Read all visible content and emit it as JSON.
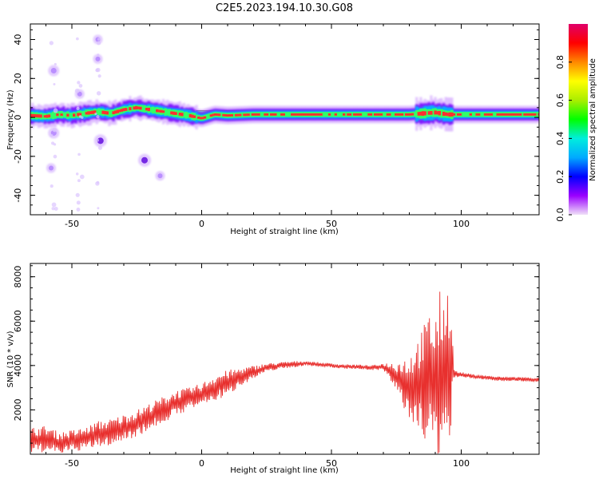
{
  "figure_title": "C2E5.2023.194.10.30.G08",
  "colors": {
    "snr_line": "#e8302e",
    "frame": "#000000",
    "track_core": "#c00000"
  },
  "colorbar": {
    "label": "Normalized spectral amplitude",
    "ticks": [
      0.0,
      0.2,
      0.4,
      0.6,
      0.8
    ],
    "tick_labels": [
      "0.0",
      "0.2",
      "0.4",
      "0.6",
      "0.8"
    ],
    "range": [
      0,
      1
    ],
    "stops": [
      "#f0e0f8",
      "#9a00ff",
      "#0000ff",
      "#00aaff",
      "#00eedd",
      "#00ff00",
      "#aaee00",
      "#ffff00",
      "#ff8800",
      "#ff0000",
      "#e0006a"
    ]
  },
  "chart_data": [
    {
      "type": "heatmap",
      "title": "",
      "xlabel": "Height of straight line (km)",
      "ylabel": "Frequency (Hz)",
      "xlim": [
        -66,
        130
      ],
      "ylim": [
        -50,
        48
      ],
      "xticks": [
        -50,
        0,
        50,
        100
      ],
      "xtick_labels": [
        "-50",
        "0",
        "50",
        "100"
      ],
      "yticks": [
        -40,
        -20,
        0,
        20,
        40
      ],
      "ytick_labels": [
        "-40",
        "-20",
        "0",
        "20",
        "40"
      ],
      "peak_track": {
        "x": [
          -66,
          -60,
          -55,
          -50,
          -45,
          -40,
          -35,
          -30,
          -25,
          -20,
          -15,
          -10,
          -5,
          0,
          5,
          10,
          20,
          30,
          40,
          50,
          60,
          70,
          80,
          85,
          90,
          95,
          100,
          110,
          120,
          130
        ],
        "freq": [
          1,
          0.5,
          1.5,
          1,
          2,
          3,
          2,
          4,
          5,
          4,
          3,
          2,
          1,
          -0.5,
          1.5,
          1,
          1.5,
          1.5,
          1.5,
          1.5,
          1.5,
          1.5,
          1.5,
          2,
          2.5,
          1.5,
          1.5,
          1.5,
          1.5,
          1.5
        ]
      },
      "blobs": [
        {
          "x": -57,
          "y": 24,
          "r": 1.5
        },
        {
          "x": -57,
          "y": -8,
          "r": 1.5
        },
        {
          "x": -39,
          "y": -12,
          "r": 2
        },
        {
          "x": -22,
          "y": -22,
          "r": 2
        },
        {
          "x": -16,
          "y": -30,
          "r": 1
        },
        {
          "x": -40,
          "y": 40,
          "r": 1
        },
        {
          "x": -47,
          "y": 12,
          "r": 1
        },
        {
          "x": -58,
          "y": -26,
          "r": 1
        },
        {
          "x": -40,
          "y": 30,
          "r": 1
        }
      ]
    },
    {
      "type": "line",
      "title": "",
      "xlabel": "Height of straight line (km)",
      "ylabel": "SNR (10 * v/v)",
      "xlim": [
        -66,
        130
      ],
      "ylim": [
        0,
        8600
      ],
      "xticks": [
        -50,
        0,
        50,
        100
      ],
      "xtick_labels": [
        "-50",
        "0",
        "50",
        "100"
      ],
      "yticks": [
        2000,
        4000,
        6000,
        8000
      ],
      "ytick_labels": [
        "2000",
        "4000",
        "6000",
        "8000"
      ],
      "series": [
        {
          "name": "SNR",
          "x": [
            -66,
            -60,
            -55,
            -50,
            -45,
            -40,
            -35,
            -30,
            -25,
            -20,
            -15,
            -10,
            -5,
            0,
            5,
            10,
            15,
            20,
            25,
            30,
            35,
            40,
            45,
            50,
            55,
            60,
            65,
            70,
            75,
            80,
            85,
            88,
            90,
            92,
            94,
            96,
            97,
            98,
            100,
            105,
            110,
            115,
            120,
            125,
            130
          ],
          "y": [
            600,
            700,
            500,
            600,
            700,
            900,
            1000,
            1200,
            1400,
            1700,
            2000,
            2300,
            2500,
            2700,
            3000,
            3200,
            3500,
            3700,
            3900,
            4000,
            4050,
            4100,
            4050,
            4000,
            3950,
            3950,
            3900,
            3950,
            3500,
            3000,
            3200,
            3500,
            3000,
            3500,
            3800,
            4200,
            3700,
            3600,
            3600,
            3500,
            3450,
            3400,
            3400,
            3380,
            3350
          ],
          "amplitude": [
            600,
            600,
            500,
            500,
            500,
            600,
            600,
            600,
            600,
            600,
            600,
            600,
            500,
            500,
            600,
            600,
            400,
            300,
            200,
            150,
            150,
            100,
            100,
            100,
            100,
            100,
            100,
            150,
            700,
            1500,
            2500,
            3000,
            3500,
            4000,
            3500,
            4000,
            300,
            150,
            100,
            100,
            100,
            100,
            100,
            100,
            100
          ]
        }
      ]
    }
  ]
}
